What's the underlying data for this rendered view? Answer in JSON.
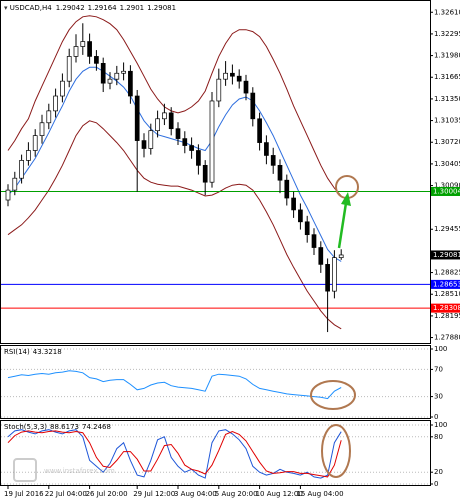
{
  "chart_data": [
    {
      "type": "candlestick",
      "title": "USDCAD,H4",
      "categories": [
        "19 Jul 2016",
        null,
        null,
        null,
        null,
        null,
        "22 Jul 04:00",
        null,
        null,
        null,
        null,
        null,
        "26 Jul 20:00",
        null,
        null,
        null,
        null,
        null,
        null,
        "29 Jul 12:00",
        null,
        null,
        null,
        null,
        null,
        "3 Aug 04:00",
        null,
        null,
        null,
        null,
        null,
        "5 Aug 20:00",
        null,
        null,
        null,
        null,
        null,
        "10 Aug 12:00",
        null,
        null,
        null,
        null,
        null,
        "15 Aug 04:00",
        null,
        null,
        null,
        null,
        null,
        null
      ],
      "open": [
        1.2988,
        1.30024,
        1.30197,
        1.30456,
        1.306,
        1.30816,
        1.31003,
        1.31176,
        1.31392,
        1.31608,
        1.31968,
        1.32112,
        1.32184,
        1.31968,
        1.31867,
        1.31579,
        1.31637,
        1.31723,
        1.31752,
        1.31392,
        1.30744,
        1.30629,
        1.30888,
        1.31061,
        1.31147,
        1.30917,
        1.30773,
        1.30672,
        1.306,
        1.30384,
        1.30139,
        1.3132,
        1.31637,
        1.31723,
        1.3168,
        1.31608,
        1.31435,
        1.31061,
        1.30715,
        1.30528,
        1.30384,
        1.30168,
        1.29909,
        1.29736,
        1.29563,
        1.29376,
        1.29189,
        1.28944,
        1.28555,
        1.29042
      ],
      "high": [
        1.3011,
        1.3029,
        1.3054,
        1.3072,
        1.3091,
        1.3112,
        1.3128,
        1.315,
        1.3172,
        1.3208,
        1.3229,
        1.3245,
        1.323,
        1.3206,
        1.3195,
        1.3174,
        1.3183,
        1.3188,
        1.3184,
        1.3148,
        1.3085,
        1.3099,
        1.3118,
        1.3128,
        1.3123,
        1.3101,
        1.3088,
        1.3079,
        1.3069,
        1.3046,
        1.3145,
        1.3179,
        1.319,
        1.3185,
        1.3178,
        1.317,
        1.3152,
        1.3115,
        1.3082,
        1.3064,
        1.3047,
        1.3025,
        1.3,
        1.2983,
        1.2965,
        1.2947,
        1.2928,
        1.2903,
        1.2915,
        1.29164
      ],
      "low": [
        1.2979,
        1.2995,
        1.3012,
        1.3038,
        1.3051,
        1.307,
        1.3091,
        1.3108,
        1.313,
        1.3152,
        1.3188,
        1.3199,
        1.3186,
        1.3176,
        1.3145,
        1.3149,
        1.3155,
        1.3162,
        1.3128,
        1.3,
        1.305,
        1.3054,
        1.3079,
        1.3097,
        1.3082,
        1.3068,
        1.3056,
        1.3048,
        1.3025,
        1.2995,
        1.3006,
        1.3123,
        1.3154,
        1.3156,
        1.315,
        1.3133,
        1.3095,
        1.306,
        1.304,
        1.3026,
        1.2998,
        1.298,
        1.2962,
        1.2945,
        1.2926,
        1.2908,
        1.2882,
        1.2796,
        1.2845,
        1.2901
      ],
      "close": [
        1.30024,
        1.30197,
        1.30456,
        1.306,
        1.30816,
        1.31003,
        1.31176,
        1.31392,
        1.31608,
        1.31968,
        1.32112,
        1.32184,
        1.31968,
        1.31867,
        1.31579,
        1.31637,
        1.31723,
        1.31752,
        1.31392,
        1.30744,
        1.30629,
        1.30888,
        1.31061,
        1.31147,
        1.30917,
        1.30773,
        1.30672,
        1.306,
        1.30384,
        1.30139,
        1.3132,
        1.31637,
        1.31723,
        1.3168,
        1.31608,
        1.31435,
        1.31061,
        1.30715,
        1.30528,
        1.30384,
        1.30168,
        1.29909,
        1.29736,
        1.29563,
        1.29376,
        1.29189,
        1.28944,
        1.28555,
        1.29042,
        1.29081
      ],
      "series": [
        {
          "color": "#8b1a1a",
          "values": [
            1.306,
            1.30744,
            1.30917,
            1.31061,
            1.3132,
            1.31536,
            1.31752,
            1.31968,
            1.32184,
            1.32357,
            1.32472,
            1.32544,
            1.32558,
            1.32544,
            1.32501,
            1.32443,
            1.32357,
            1.32213,
            1.3204,
            1.31867,
            1.3168,
            1.31493,
            1.31349,
            1.31234,
            1.31176,
            1.31147,
            1.31176,
            1.31234,
            1.3132,
            1.31464,
            1.31723,
            1.31968,
            1.32155,
            1.32299,
            1.32357,
            1.32357,
            1.32328,
            1.32256,
            1.32112,
            1.31925,
            1.31723,
            1.31493,
            1.31248,
            1.31032,
            1.30816,
            1.306,
            1.30384,
            1.30197,
            1.30053,
            1.29938
          ]
        },
        {
          "color": "#2f6fdf",
          "values": [
            1.29952,
            1.30053,
            1.30197,
            1.30341,
            1.30485,
            1.30672,
            1.30859,
            1.31061,
            1.31248,
            1.31464,
            1.31637,
            1.31752,
            1.3181,
            1.3181,
            1.31752,
            1.3168,
            1.31608,
            1.31522,
            1.31392,
            1.31205,
            1.31032,
            1.30917,
            1.3083,
            1.30802,
            1.30773,
            1.30744,
            1.30715,
            1.30672,
            1.30629,
            1.306,
            1.30744,
            1.30946,
            1.31118,
            1.31262,
            1.31349,
            1.31378,
            1.3132,
            1.31176,
            1.31003,
            1.30816,
            1.306,
            1.30384,
            1.30168,
            1.29952,
            1.29765,
            1.29563,
            1.29362,
            1.2916,
            1.29045,
            1.28987
          ]
        },
        {
          "color": "#8b1a1a",
          "values": [
            1.29376,
            1.29448,
            1.2952,
            1.29621,
            1.29736,
            1.2988,
            1.30024,
            1.30197,
            1.30384,
            1.306,
            1.30816,
            1.3096,
            1.31032,
            1.31003,
            1.30917,
            1.30816,
            1.30715,
            1.306,
            1.30456,
            1.30312,
            1.30197,
            1.30139,
            1.3011,
            1.30096,
            1.30082,
            1.30082,
            1.30053,
            1.30024,
            1.29981,
            1.29938,
            1.29952,
            1.29995,
            1.30053,
            1.30096,
            1.3011,
            1.30096,
            1.30024,
            1.2988,
            1.29707,
            1.2952,
            1.29304,
            1.29088,
            1.28901,
            1.28728,
            1.28555,
            1.28411,
            1.28267,
            1.28152,
            1.28066,
            1.28008
          ]
        }
      ],
      "levels": [
        {
          "value": 1.30004,
          "color": "#00a000"
        },
        {
          "value": 1.28653,
          "color": "#0000ff"
        },
        {
          "value": 1.28308,
          "color": "#ff0000"
        }
      ],
      "ylim": [
        1.2783,
        1.3273
      ],
      "yticks": [
        {
          "value": 1.3261,
          "label": "1.32610"
        },
        1.32295,
        {
          "value": 1.3198,
          "label": "1.31980"
        },
        1.31665,
        {
          "value": 1.3135,
          "label": "1.31350"
        },
        1.31035,
        {
          "value": 1.3072,
          "label": "1.30720"
        },
        1.30405,
        {
          "value": 1.3009,
          "label": "1.30090"
        },
        1.29455,
        1.28825,
        {
          "value": 1.2851,
          "label": "1.28510"
        },
        1.28195,
        {
          "value": 1.2788,
          "label": "1.27880"
        }
      ]
    },
    {
      "type": "line",
      "title": "RSI(14)",
      "series": [
        {
          "color": "#1e90ff",
          "values": [
            58,
            60,
            62,
            61,
            63,
            64,
            63,
            65,
            66,
            68,
            67,
            65,
            58,
            56,
            52,
            54,
            55,
            55,
            48,
            40,
            42,
            47,
            50,
            51,
            46,
            44,
            43,
            42,
            40,
            38,
            60,
            63,
            62,
            61,
            60,
            56,
            48,
            42,
            40,
            38,
            36,
            34,
            33,
            32,
            31,
            30,
            29,
            27,
            38,
            43.3218
          ]
        }
      ],
      "ylim": [
        0,
        100
      ],
      "yticks": [
        100,
        70,
        30,
        0
      ]
    },
    {
      "type": "line",
      "title": "Stoch(5,3,3)",
      "series": [
        {
          "color": "#1e56d8",
          "values": [
            80,
            90,
            92,
            88,
            85,
            90,
            92,
            88,
            85,
            90,
            92,
            80,
            40,
            30,
            20,
            35,
            60,
            70,
            40,
            15,
            12,
            40,
            75,
            80,
            45,
            30,
            20,
            25,
            15,
            10,
            70,
            90,
            92,
            85,
            75,
            60,
            30,
            20,
            15,
            18,
            25,
            20,
            18,
            15,
            20,
            12,
            10,
            15,
            70,
            88.6173
          ]
        },
        {
          "color": "#e00000",
          "values": [
            70,
            82,
            88,
            90,
            88,
            87,
            89,
            90,
            88,
            87,
            89,
            87,
            70,
            45,
            30,
            28,
            40,
            55,
            55,
            42,
            22,
            22,
            42,
            65,
            67,
            52,
            32,
            25,
            22,
            17,
            32,
            57,
            84,
            89,
            84,
            73,
            55,
            37,
            22,
            18,
            19,
            21,
            21,
            18,
            18,
            16,
            14,
            12,
            32,
            74.2468
          ]
        }
      ],
      "ylim": [
        0,
        100
      ],
      "yticks": [
        100,
        80,
        20,
        0
      ]
    }
  ],
  "watermark": "www.instaforex.com"
}
